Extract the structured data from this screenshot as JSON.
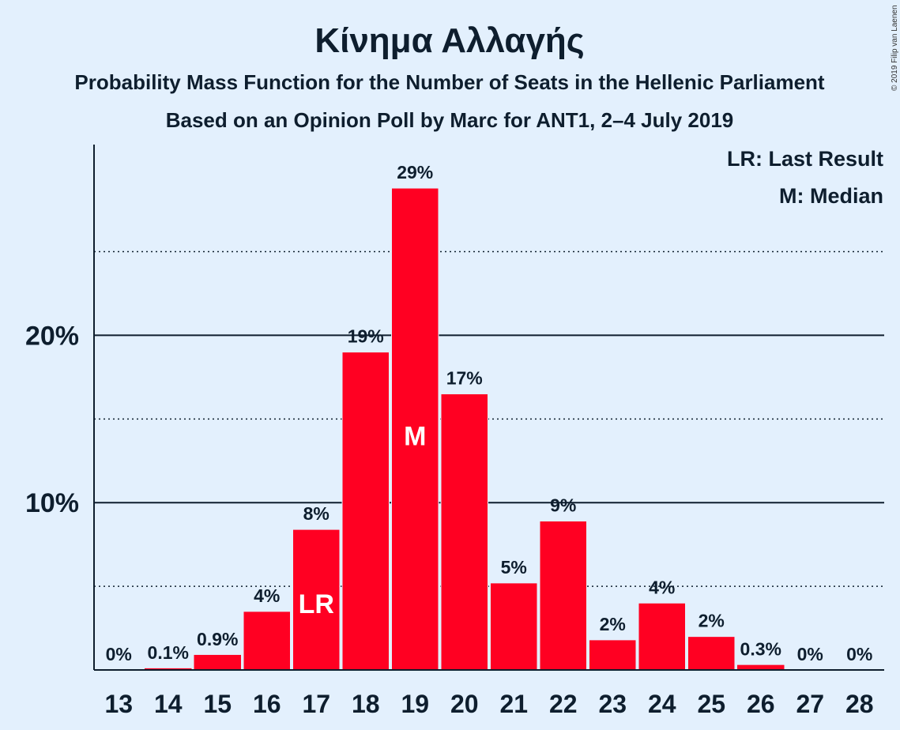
{
  "chart_data": {
    "type": "bar",
    "title": "Κίνημα Αλλαγής",
    "subtitle_1": "Probability Mass Function for the Number of Seats in the Hellenic Parliament",
    "subtitle_2": "Based on an Opinion Poll by Marc for ANT1, 2–4 July 2019",
    "copyright": "© 2019 Filip van Laenen",
    "legend": [
      "LR: Last Result",
      "M: Median"
    ],
    "categories": [
      "13",
      "14",
      "15",
      "16",
      "17",
      "18",
      "19",
      "20",
      "21",
      "22",
      "23",
      "24",
      "25",
      "26",
      "27",
      "28"
    ],
    "values": [
      0,
      0.1,
      0.9,
      3.5,
      8.4,
      19.0,
      28.8,
      16.5,
      5.2,
      8.9,
      1.8,
      4.0,
      2.0,
      0.3,
      0,
      0
    ],
    "data_labels": [
      "0%",
      "0.1%",
      "0.9%",
      "4%",
      "8%",
      "19%",
      "29%",
      "17%",
      "5%",
      "9%",
      "2%",
      "4%",
      "2%",
      "0.3%",
      "0%",
      "0%"
    ],
    "markers": {
      "17": "LR",
      "19": "M"
    },
    "y_ticks": [
      {
        "value": 10,
        "label": "10%"
      },
      {
        "value": 20,
        "label": "20%"
      }
    ],
    "dotted_gridlines": [
      5,
      15,
      25
    ],
    "ylim": [
      0,
      31.4
    ],
    "bar_color": "#FF0022"
  }
}
